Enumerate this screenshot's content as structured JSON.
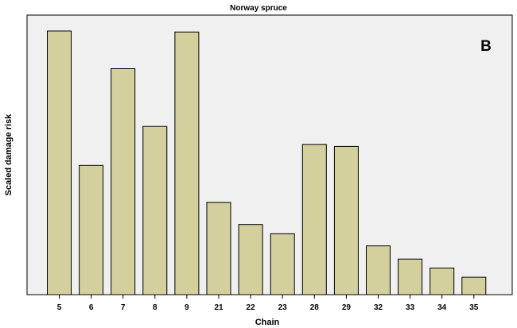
{
  "chart_data": {
    "type": "bar",
    "title": "Norway spruce",
    "panel_label": "B",
    "xlabel": "Chain",
    "ylabel": "Scaled damage risk",
    "categories": [
      "5",
      "6",
      "7",
      "8",
      "9",
      "21",
      "22",
      "23",
      "28",
      "29",
      "32",
      "33",
      "34",
      "35"
    ],
    "values": [
      1.0,
      0.49,
      0.857,
      0.638,
      0.996,
      0.35,
      0.266,
      0.231,
      0.57,
      0.562,
      0.185,
      0.135,
      0.101,
      0.066
    ],
    "ylim": [
      0,
      1.0
    ],
    "grid": false,
    "colors": {
      "bar_fill": "#d3d09d",
      "bar_stroke": "#000000",
      "plot_background": "#f0f0f0",
      "plot_border": "#000000"
    }
  }
}
